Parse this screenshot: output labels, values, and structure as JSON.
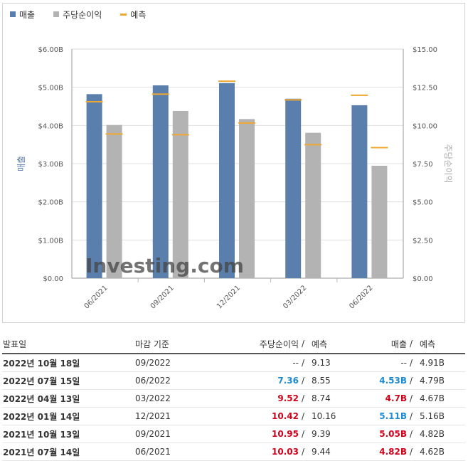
{
  "legend": {
    "revenue": "매출",
    "eps": "주당순이익",
    "forecast": "예측"
  },
  "colors": {
    "revenue": "#5b7fad",
    "eps": "#b3b3b3",
    "forecast": "#f0a830",
    "grid": "#e0e0e0"
  },
  "chart_data": {
    "type": "bar",
    "categories": [
      "06/2021",
      "09/2021",
      "12/2021",
      "03/2022",
      "06/2022"
    ],
    "series": [
      {
        "name": "매출",
        "axis": "left",
        "values": [
          4.82,
          5.05,
          5.11,
          4.7,
          4.53
        ]
      },
      {
        "name": "주당순이익",
        "axis": "right",
        "values": [
          10.03,
          10.95,
          10.42,
          9.52,
          7.36
        ]
      }
    ],
    "forecast": {
      "revenue": [
        4.62,
        4.82,
        5.16,
        4.67,
        4.79
      ],
      "eps": [
        9.44,
        9.39,
        10.16,
        8.74,
        8.55
      ]
    },
    "ylabel_left": "매출",
    "ylabel_right": "주당순이익",
    "ylim_left": [
      0,
      6
    ],
    "ylim_right": [
      0,
      15
    ],
    "yticks_left": [
      "$0.00",
      "$1.00B",
      "$2.00B",
      "$3.00B",
      "$4.00B",
      "$5.00B",
      "$6.00B"
    ],
    "yticks_right": [
      "$0.00",
      "$2.50",
      "$5.00",
      "$7.50",
      "$10.00",
      "$12.50",
      "$15.00"
    ],
    "grid": true,
    "legend_position": "top-left",
    "watermark": "Investing.com"
  },
  "table": {
    "headers": {
      "date": "발표일",
      "period": "마감 기준",
      "eps": "주당순이익",
      "eps_forecast": "예측",
      "revenue": "매출",
      "revenue_forecast": "예측",
      "separator": "/"
    },
    "rows": [
      {
        "date": "2022년 10월 18일",
        "period": "09/2022",
        "eps": "--",
        "eps_color": "plain",
        "eps_forecast": "9.13",
        "revenue": "--",
        "revenue_color": "plain",
        "revenue_forecast": "4.91B"
      },
      {
        "date": "2022년 07월 15일",
        "period": "06/2022",
        "eps": "7.36",
        "eps_color": "blue",
        "eps_forecast": "8.55",
        "revenue": "4.53B",
        "revenue_color": "blue",
        "revenue_forecast": "4.79B"
      },
      {
        "date": "2022년 04월 13일",
        "period": "03/2022",
        "eps": "9.52",
        "eps_color": "red",
        "eps_forecast": "8.74",
        "revenue": "4.7B",
        "revenue_color": "red",
        "revenue_forecast": "4.67B"
      },
      {
        "date": "2022년 01월 14일",
        "period": "12/2021",
        "eps": "10.42",
        "eps_color": "red",
        "eps_forecast": "10.16",
        "revenue": "5.11B",
        "revenue_color": "blue",
        "revenue_forecast": "5.16B"
      },
      {
        "date": "2021년 10월 13일",
        "period": "09/2021",
        "eps": "10.95",
        "eps_color": "red",
        "eps_forecast": "9.39",
        "revenue": "5.05B",
        "revenue_color": "red",
        "revenue_forecast": "4.82B"
      },
      {
        "date": "2021년 07월 14일",
        "period": "06/2021",
        "eps": "10.03",
        "eps_color": "red",
        "eps_forecast": "9.44",
        "revenue": "4.82B",
        "revenue_color": "red",
        "revenue_forecast": "4.62B"
      }
    ]
  }
}
